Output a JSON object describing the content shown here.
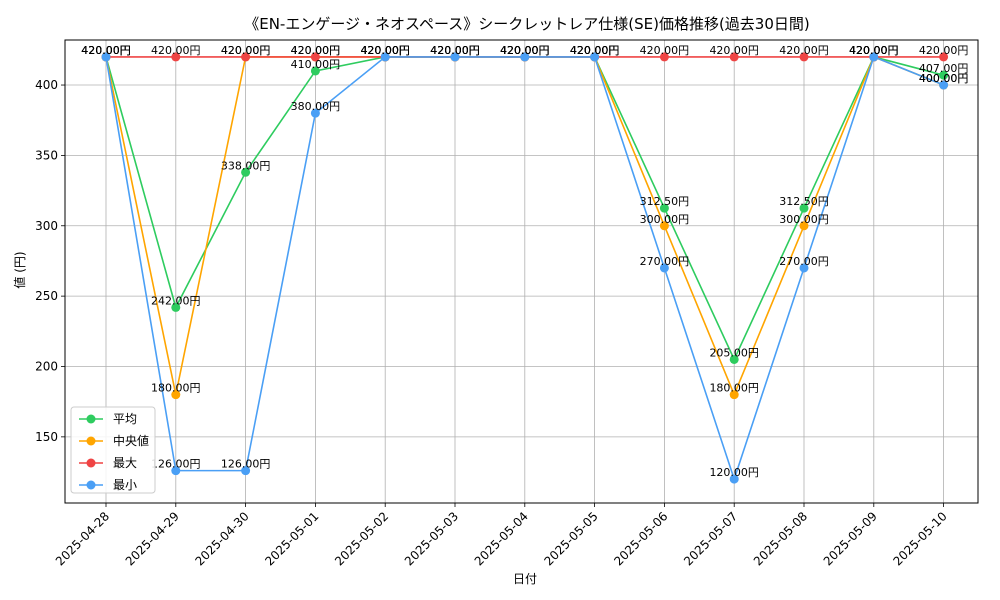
{
  "chart_data": {
    "type": "line",
    "title": "《EN-エンゲージ・ネオスペース》シークレットレア仕様(SE)価格推移(過去30日間)",
    "xlabel": "日付",
    "ylabel": "値 (円)",
    "categories": [
      "2025-04-28",
      "2025-04-29",
      "2025-04-30",
      "2025-05-01",
      "2025-05-02",
      "2025-05-03",
      "2025-05-04",
      "2025-05-05",
      "2025-05-06",
      "2025-05-07",
      "2025-05-08",
      "2025-05-09",
      "2025-05-10"
    ],
    "ylim": [
      103,
      432
    ],
    "yticks": [
      150,
      200,
      250,
      300,
      350,
      400
    ],
    "grid": true,
    "legend_position": "lower-left",
    "label_suffix": "円",
    "series": [
      {
        "name": "平均",
        "color": "#2ecc5f",
        "values": [
          420,
          242,
          338,
          410,
          420,
          420,
          420,
          420,
          312.5,
          205,
          312.5,
          420,
          407
        ]
      },
      {
        "name": "中央値",
        "color": "#ffa500",
        "values": [
          420,
          180,
          420,
          420,
          420,
          420,
          420,
          420,
          300,
          180,
          300,
          420,
          400
        ]
      },
      {
        "name": "最大",
        "color": "#ef4444",
        "values": [
          420,
          420,
          420,
          420,
          420,
          420,
          420,
          420,
          420,
          420,
          420,
          420,
          420
        ]
      },
      {
        "name": "最小",
        "color": "#4a9ff5",
        "values": [
          420,
          126,
          126,
          380,
          420,
          420,
          420,
          420,
          270,
          120,
          270,
          420,
          400
        ]
      }
    ]
  }
}
